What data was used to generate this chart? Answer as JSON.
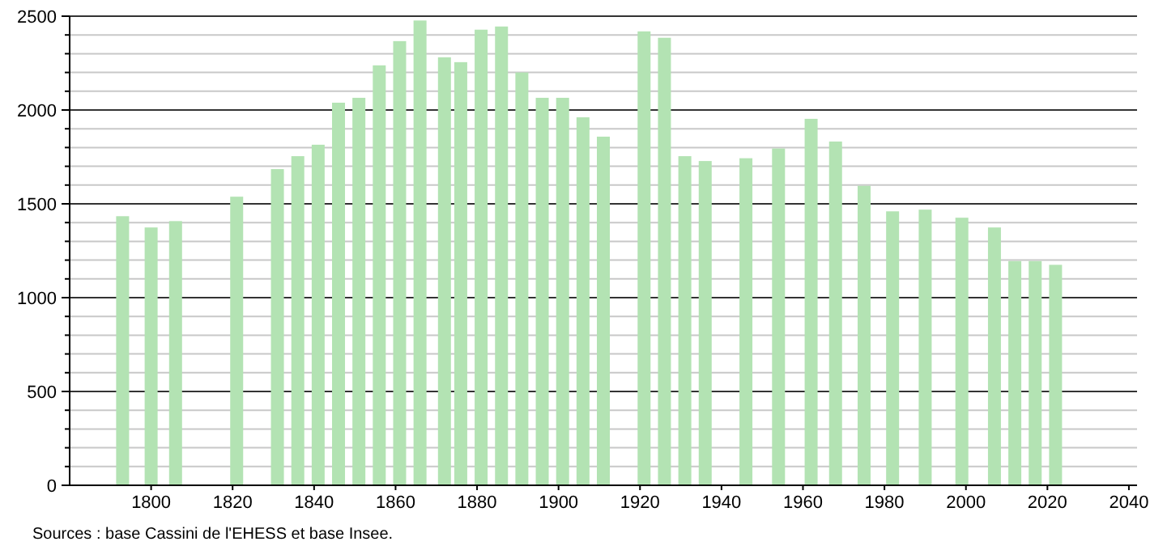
{
  "chart_data": {
    "type": "bar",
    "x": [
      1793,
      1800,
      1806,
      1821,
      1831,
      1836,
      1841,
      1846,
      1851,
      1856,
      1861,
      1866,
      1872,
      1876,
      1881,
      1886,
      1891,
      1896,
      1901,
      1906,
      1911,
      1921,
      1926,
      1931,
      1936,
      1946,
      1954,
      1962,
      1968,
      1975,
      1982,
      1990,
      1999,
      2007,
      2012,
      2017,
      2022
    ],
    "values": [
      1434,
      1374,
      1408,
      1538,
      1685,
      1754,
      1815,
      2039,
      2065,
      2238,
      2367,
      2477,
      2281,
      2255,
      2428,
      2445,
      2200,
      2065,
      2065,
      1961,
      1858,
      2419,
      2385,
      1754,
      1728,
      1743,
      1795,
      1953,
      1832,
      1596,
      1460,
      1469,
      1426,
      1374,
      1195,
      1195,
      1175
    ],
    "color": "#b3e3b3",
    "xlim": [
      1780,
      2042
    ],
    "xticks": [
      1800,
      1820,
      1840,
      1860,
      1880,
      1900,
      1920,
      1940,
      1960,
      1980,
      2000,
      2020,
      2040
    ],
    "ylim": [
      0,
      2500
    ],
    "yticks": [
      0,
      {
        "value": 100,
        "label": null
      },
      {
        "value": 200,
        "label": null
      },
      {
        "value": 300,
        "label": null
      },
      {
        "value": 400,
        "label": null
      },
      500,
      {
        "value": 600,
        "label": null
      },
      {
        "value": 700,
        "label": null
      },
      {
        "value": 800,
        "label": null
      },
      {
        "value": 900,
        "label": null
      },
      1000,
      {
        "value": 1100,
        "label": null
      },
      {
        "value": 1200,
        "label": null
      },
      {
        "value": 1300,
        "label": null
      },
      {
        "value": 1400,
        "label": null
      },
      1500,
      {
        "value": 1600,
        "label": null
      },
      {
        "value": 1700,
        "label": null
      },
      {
        "value": 1800,
        "label": null
      },
      {
        "value": 1900,
        "label": null
      },
      2000,
      {
        "value": 2100,
        "label": null
      },
      {
        "value": 2200,
        "label": null
      },
      {
        "value": 2300,
        "label": null
      },
      {
        "value": 2400,
        "label": null
      },
      2500
    ],
    "grid": true,
    "annotations": [
      "Sources : base Cassini de l'EHESS et base Insee."
    ]
  }
}
